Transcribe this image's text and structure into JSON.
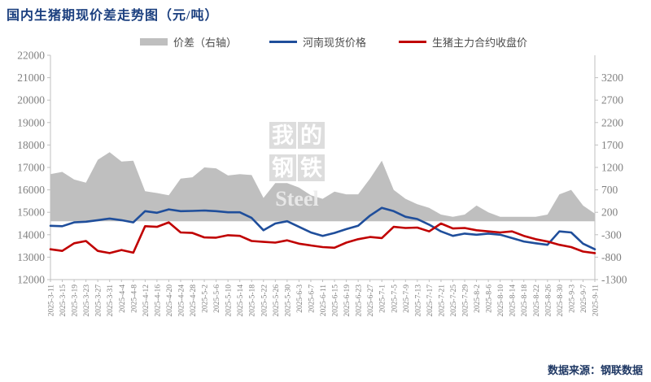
{
  "title": "国内生猪期现价差走势图（元/吨）",
  "legend": [
    {
      "label": "价差（右轴）",
      "type": "area",
      "color": "#BFBFBF"
    },
    {
      "label": "河南现货价格",
      "type": "line",
      "color": "#1F4E9B"
    },
    {
      "label": "生猪主力合约收盘价",
      "type": "line",
      "color": "#C00000"
    }
  ],
  "footer": {
    "source": "数据来源：钢联数据"
  },
  "watermark": {
    "chars": [
      "我",
      "的",
      "钢",
      "铁"
    ],
    "word": "Steel"
  },
  "colors": {
    "title": "#1B3F7F",
    "axis_line": "#BFBFBF",
    "tick_text": "#808080",
    "area": "#BFBFBF",
    "spot_line": "#1F4E9B",
    "futures_line": "#C00000",
    "watermark_block": "#DBDBDB",
    "watermark_text": "#FFFFFF"
  },
  "chart_data": {
    "type": "line",
    "title": "国内生猪期现价差走势图（元/吨）",
    "grid": false,
    "legend_position": "top",
    "x": [
      "2025-3-11",
      "2025-3-15",
      "2025-3-19",
      "2025-3-23",
      "2025-3-27",
      "2025-3-31",
      "2025-4-4",
      "2025-4-8",
      "2025-4-12",
      "2025-4-16",
      "2025-4-20",
      "2025-4-24",
      "2025-4-28",
      "2025-5-2",
      "2025-5-6",
      "2025-5-10",
      "2025-5-14",
      "2025-5-18",
      "2025-5-22",
      "2025-5-26",
      "2025-5-30",
      "2025-6-3",
      "2025-6-7",
      "2025-6-11",
      "2025-6-15",
      "2025-6-19",
      "2025-6-23",
      "2025-6-27",
      "2025-7-1",
      "2025-7-5",
      "2025-7-9",
      "2025-7-13",
      "2025-7-17",
      "2025-7-21",
      "2025-7-25",
      "2025-7-29",
      "2025-8-2",
      "2025-8-6",
      "2025-8-10",
      "2025-8-14",
      "2025-8-18",
      "2025-8-22",
      "2025-8-26",
      "2025-8-30",
      "2025-9-3",
      "2025-9-7",
      "2025-9-11"
    ],
    "left_axis": {
      "min": 12000,
      "max": 22000,
      "ticks": [
        22000,
        21000,
        20000,
        19000,
        18000,
        17000,
        16000,
        15000,
        14000,
        13000,
        12000
      ]
    },
    "right_axis": {
      "min": -1300,
      "max": 3200,
      "ticks": [
        3200,
        2700,
        2200,
        1700,
        1200,
        700,
        200,
        -300,
        -800,
        -1300
      ]
    },
    "series": [
      {
        "name": "价差（右轴）",
        "axis": "right",
        "style": "area",
        "color": "#BFBFBF",
        "values": [
          1050,
          1100,
          930,
          860,
          1370,
          1540,
          1330,
          1350,
          670,
          630,
          580,
          950,
          980,
          1200,
          1180,
          1020,
          1050,
          1030,
          520,
          850,
          850,
          750,
          580,
          500,
          660,
          600,
          600,
          950,
          1350,
          700,
          500,
          380,
          300,
          150,
          100,
          150,
          350,
          200,
          100,
          100,
          100,
          100,
          150,
          600,
          700,
          350,
          170
        ]
      },
      {
        "name": "河南现货价格",
        "axis": "left",
        "style": "line",
        "color": "#1F4E9B",
        "values": [
          14400,
          14380,
          14550,
          14580,
          14650,
          14720,
          14650,
          14550,
          15050,
          14980,
          15130,
          15050,
          15060,
          15080,
          15050,
          15000,
          15000,
          14750,
          14200,
          14500,
          14600,
          14350,
          14100,
          13950,
          14080,
          14250,
          14400,
          14850,
          15200,
          15050,
          14800,
          14700,
          14450,
          14150,
          13950,
          14050,
          14000,
          14050,
          14000,
          13850,
          13700,
          13620,
          13550,
          14150,
          14100,
          13600,
          13350
        ]
      },
      {
        "name": "生猪主力合约收盘价",
        "axis": "left",
        "style": "line",
        "color": "#C00000",
        "values": [
          13350,
          13280,
          13620,
          13720,
          13280,
          13180,
          13320,
          13200,
          14380,
          14350,
          14550,
          14100,
          14080,
          13880,
          13870,
          13980,
          13950,
          13720,
          13680,
          13650,
          13750,
          13600,
          13520,
          13450,
          13420,
          13650,
          13800,
          13900,
          13850,
          14350,
          14300,
          14320,
          14150,
          14500,
          14280,
          14300,
          14200,
          14150,
          14100,
          14150,
          13950,
          13800,
          13700,
          13550,
          13450,
          13250,
          13180
        ]
      }
    ]
  }
}
